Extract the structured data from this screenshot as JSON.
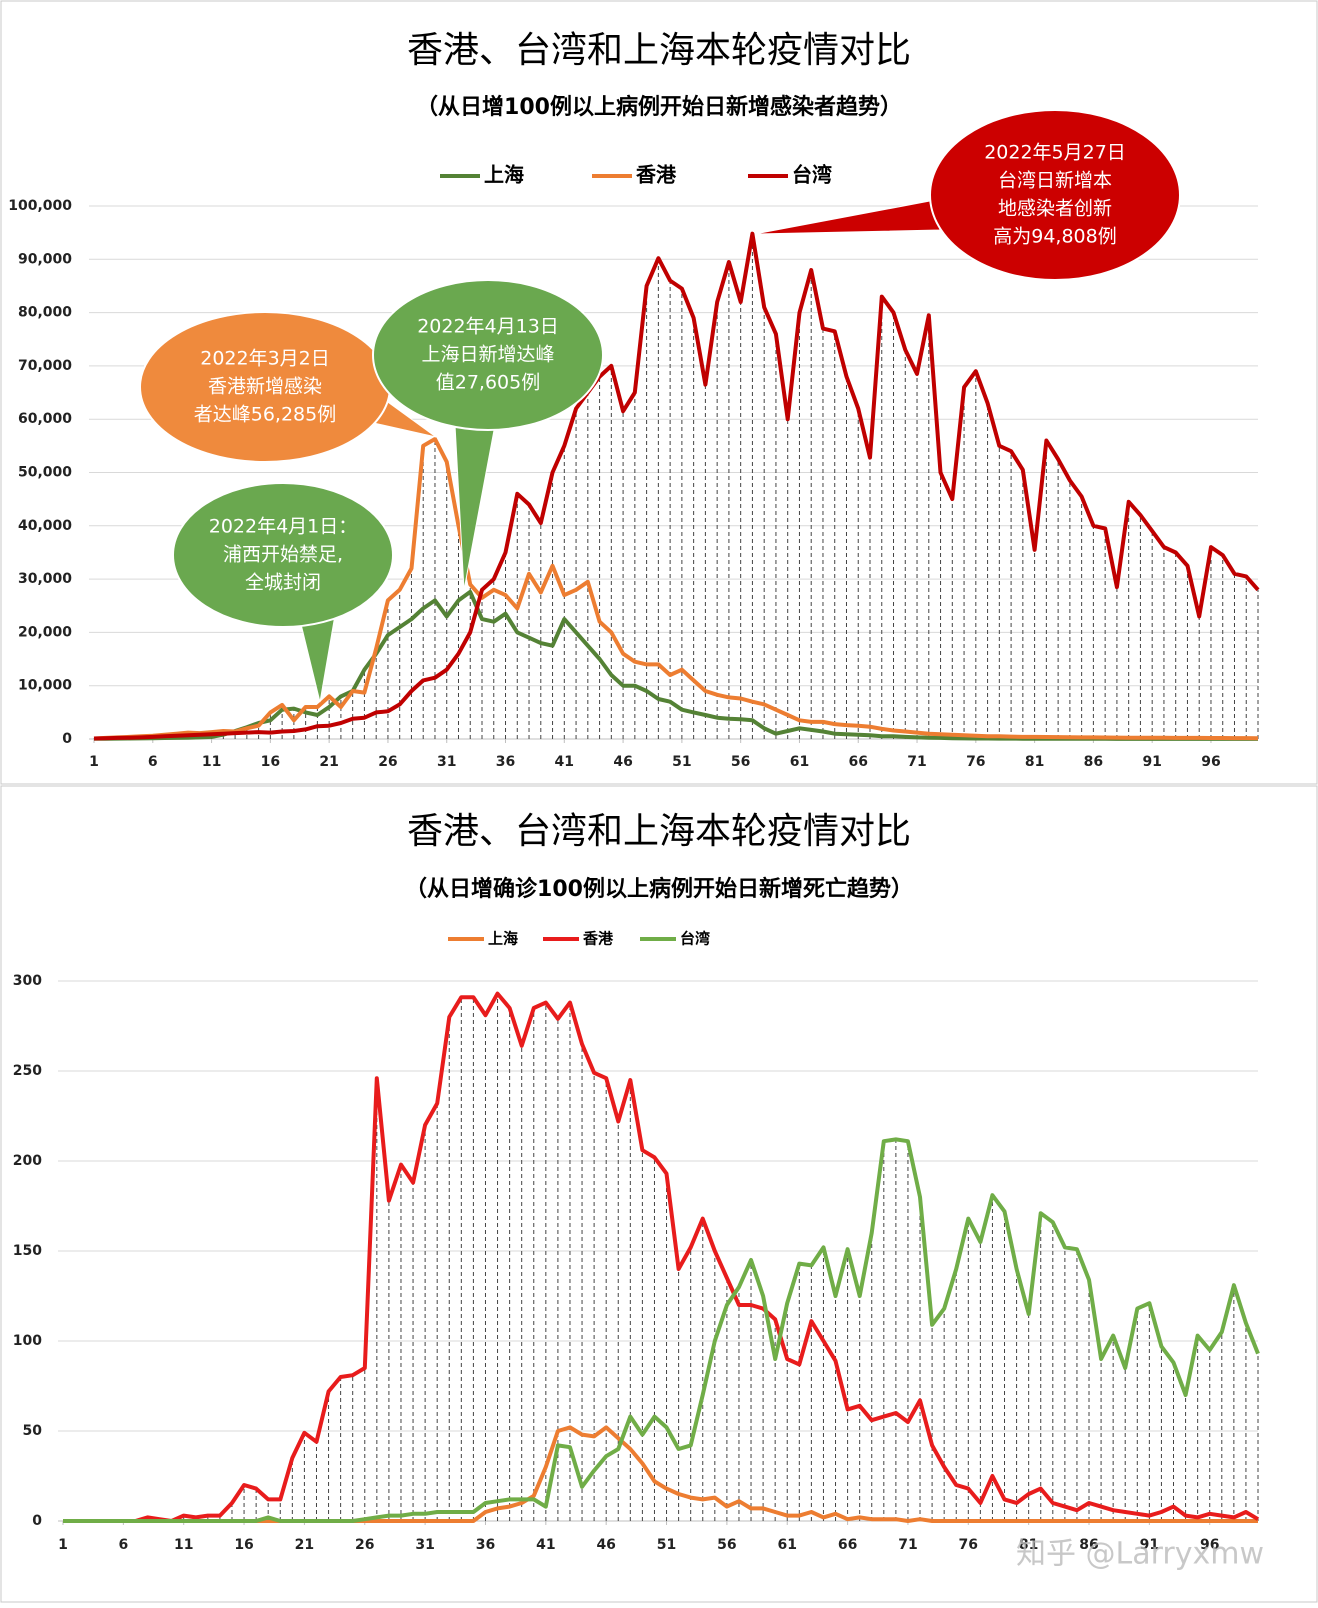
{
  "chart_data": [
    {
      "type": "line",
      "title": "香港、台湾和上海本轮疫情对比",
      "subtitle": "（从日增100例以上病例开始日新增感染者趋势）",
      "x": [
        1,
        2,
        3,
        4,
        5,
        6,
        7,
        8,
        9,
        10,
        11,
        12,
        13,
        14,
        15,
        16,
        17,
        18,
        19,
        20,
        21,
        22,
        23,
        24,
        25,
        26,
        27,
        28,
        29,
        30,
        31,
        32,
        33,
        34,
        35,
        36,
        37,
        38,
        39,
        40,
        41,
        42,
        43,
        44,
        45,
        46,
        47,
        48,
        49,
        50,
        51,
        52,
        53,
        54,
        55,
        56,
        57,
        58,
        59,
        60,
        61,
        62,
        63,
        64,
        65,
        66,
        67,
        68,
        69,
        70,
        71,
        72,
        73,
        74,
        75,
        76,
        77,
        78,
        79,
        80,
        81,
        82,
        83,
        84,
        85,
        86,
        87,
        88,
        89,
        90,
        91,
        92,
        93,
        94,
        95,
        96,
        97,
        98,
        99,
        100
      ],
      "xlim": [
        1,
        100
      ],
      "xticks": [
        1,
        6,
        11,
        16,
        21,
        26,
        31,
        36,
        41,
        46,
        51,
        56,
        61,
        66,
        71,
        76,
        81,
        86,
        91,
        96
      ],
      "ylim": [
        0,
        100000
      ],
      "yticks": [
        0,
        {
          "value": 10000,
          "label": "10,000"
        },
        {
          "value": 20000,
          "label": "20,000"
        },
        {
          "value": 30000,
          "label": "30,000"
        },
        {
          "value": 40000,
          "label": "40,000"
        },
        {
          "value": 50000,
          "label": "50,000"
        },
        {
          "value": 60000,
          "label": "60,000"
        },
        {
          "value": 70000,
          "label": "70,000"
        },
        {
          "value": 80000,
          "label": "80,000"
        },
        {
          "value": 90000,
          "label": "90,000"
        },
        {
          "value": 100000,
          "label": "100,000"
        }
      ],
      "grid": true,
      "legend": "top",
      "series": [
        {
          "name": "上海",
          "color": "#548235",
          "values": [
            50,
            60,
            80,
            100,
            120,
            150,
            180,
            200,
            250,
            300,
            400,
            800,
            1500,
            2200,
            3000,
            3500,
            5500,
            5700,
            5000,
            4500,
            6000,
            8000,
            9000,
            13000,
            16000,
            19500,
            21000,
            22500,
            24500,
            26000,
            23000,
            26000,
            27605,
            22500,
            22000,
            23500,
            20000,
            19000,
            18000,
            17500,
            22500,
            20000,
            17500,
            15000,
            12000,
            10000,
            10000,
            9000,
            7500,
            7000,
            5500,
            5000,
            4500,
            4000,
            3800,
            3700,
            3500,
            2000,
            1000,
            1500,
            2000,
            1700,
            1400,
            1000,
            900,
            800,
            700,
            500,
            500,
            400,
            300,
            250,
            200,
            150,
            120,
            100,
            90,
            80,
            70,
            60,
            50,
            50,
            40,
            40,
            30,
            30,
            30,
            20,
            20,
            20,
            20,
            20,
            15,
            15,
            10,
            10,
            10,
            10,
            10,
            10
          ]
        },
        {
          "name": "香港",
          "color": "#ed7d31",
          "values": [
            100,
            200,
            300,
            400,
            500,
            600,
            800,
            1000,
            1200,
            1100,
            1300,
            1500,
            1400,
            2000,
            2500,
            5000,
            6400,
            3500,
            6000,
            6000,
            8000,
            6000,
            9000,
            8700,
            17000,
            26000,
            28000,
            32000,
            55000,
            56285,
            52000,
            40000,
            29000,
            26500,
            28000,
            27000,
            24500,
            31000,
            27500,
            32500,
            27000,
            28000,
            29500,
            22000,
            20000,
            16000,
            14500,
            14000,
            14000,
            12000,
            13000,
            11000,
            9000,
            8300,
            7800,
            7600,
            7000,
            6500,
            5500,
            4500,
            3500,
            3200,
            3200,
            2800,
            2600,
            2500,
            2300,
            1900,
            1600,
            1400,
            1200,
            1000,
            900,
            800,
            700,
            600,
            500,
            500,
            450,
            400,
            400,
            380,
            350,
            330,
            300,
            300,
            280,
            260,
            250,
            240,
            230,
            220,
            210,
            200,
            200,
            190,
            180,
            170,
            160,
            150
          ]
        },
        {
          "name": "台湾",
          "color": "#c00000",
          "values": [
            100,
            150,
            200,
            250,
            300,
            400,
            500,
            600,
            700,
            800,
            900,
            1000,
            1100,
            1200,
            1300,
            1200,
            1400,
            1500,
            1800,
            2400,
            2500,
            3000,
            3800,
            4000,
            5000,
            5200,
            6500,
            9000,
            11000,
            11500,
            13000,
            16000,
            20000,
            28000,
            30000,
            35000,
            46000,
            44000,
            40500,
            50000,
            55000,
            62000,
            65000,
            68000,
            70000,
            61500,
            65000,
            85000,
            90200,
            86000,
            84500,
            79000,
            66500,
            82000,
            89500,
            82000,
            94808,
            81000,
            76000,
            60000,
            80000,
            88000,
            77000,
            76500,
            68000,
            62000,
            52800,
            83000,
            80000,
            73000,
            68500,
            79500,
            50000,
            45000,
            66000,
            69000,
            63000,
            55000,
            54000,
            50500,
            35500,
            56000,
            52500,
            48500,
            45500,
            40000,
            39500,
            28500,
            44500,
            42000,
            39000,
            36000,
            35000,
            32500,
            23000,
            36000,
            34500,
            31000,
            30500,
            28000
          ]
        }
      ],
      "annotations": [
        {
          "lines": [
            "2022年3月2日",
            "香港新增感染",
            "者达峰56,285例"
          ],
          "color": "#ef8a3d"
        },
        {
          "lines": [
            "2022年4月13日",
            "上海日新增达峰",
            "值27,605例"
          ],
          "color": "#6aa84f"
        },
        {
          "lines": [
            "2022年4月1日：",
            "浦西开始禁足,",
            "全城封闭"
          ],
          "color": "#6aa84f"
        },
        {
          "lines": [
            "2022年5月27日",
            "台湾日新增本",
            "地感染者创新",
            "高为94,808例"
          ],
          "color": "#cc0000"
        }
      ]
    },
    {
      "type": "line",
      "title": "香港、台湾和上海本轮疫情对比",
      "subtitle": "（从日增确诊100例以上病例开始日新增死亡趋势）",
      "x": [
        1,
        2,
        3,
        4,
        5,
        6,
        7,
        8,
        9,
        10,
        11,
        12,
        13,
        14,
        15,
        16,
        17,
        18,
        19,
        20,
        21,
        22,
        23,
        24,
        25,
        26,
        27,
        28,
        29,
        30,
        31,
        32,
        33,
        34,
        35,
        36,
        37,
        38,
        39,
        40,
        41,
        42,
        43,
        44,
        45,
        46,
        47,
        48,
        49,
        50,
        51,
        52,
        53,
        54,
        55,
        56,
        57,
        58,
        59,
        60,
        61,
        62,
        63,
        64,
        65,
        66,
        67,
        68,
        69,
        70,
        71,
        72,
        73,
        74,
        75,
        76,
        77,
        78,
        79,
        80,
        81,
        82,
        83,
        84,
        85,
        86,
        87,
        88,
        89,
        90,
        91,
        92,
        93,
        94,
        95,
        96,
        97,
        98,
        99,
        100
      ],
      "xlim": [
        1,
        100
      ],
      "xticks": [
        1,
        6,
        11,
        16,
        21,
        26,
        31,
        36,
        41,
        46,
        51,
        56,
        61,
        66,
        71,
        76,
        81,
        86,
        91,
        96
      ],
      "ylim": [
        0,
        300
      ],
      "yticks": [
        0,
        50,
        100,
        150,
        200,
        250,
        300
      ],
      "grid": true,
      "legend": "top",
      "series": [
        {
          "name": "上海",
          "color": "#ed7d31",
          "values": [
            0,
            0,
            0,
            0,
            0,
            0,
            0,
            0,
            0,
            0,
            0,
            0,
            0,
            0,
            0,
            0,
            0,
            0,
            0,
            0,
            0,
            0,
            0,
            0,
            0,
            0,
            0,
            0,
            0,
            0,
            0,
            0,
            0,
            0,
            0,
            5,
            7,
            8,
            10,
            14,
            30,
            50,
            52,
            48,
            47,
            52,
            46,
            40,
            32,
            22,
            18,
            15,
            13,
            12,
            13,
            8,
            11,
            7,
            7,
            5,
            3,
            3,
            5,
            2,
            4,
            1,
            2,
            1,
            1,
            1,
            0,
            1,
            0,
            0,
            0,
            0,
            0,
            0,
            0,
            0,
            0,
            0,
            0,
            0,
            0,
            0,
            0,
            0,
            0,
            0,
            0,
            0,
            0,
            0,
            0,
            0,
            0,
            0,
            0,
            0
          ]
        },
        {
          "name": "香港",
          "color": "#e81c1c",
          "values": [
            0,
            0,
            0,
            0,
            0,
            0,
            0,
            2,
            1,
            0,
            3,
            2,
            3,
            3,
            10,
            20,
            18,
            12,
            12,
            35,
            49,
            44,
            72,
            80,
            81,
            85,
            246,
            178,
            198,
            188,
            220,
            232,
            280,
            291,
            291,
            281,
            293,
            285,
            264,
            285,
            288,
            279,
            288,
            265,
            249,
            246,
            222,
            245,
            206,
            202,
            193,
            140,
            152,
            168,
            150,
            135,
            120,
            120,
            118,
            112,
            90,
            87,
            111,
            100,
            89,
            62,
            64,
            56,
            58,
            60,
            55,
            67,
            42,
            30,
            20,
            18,
            10,
            25,
            12,
            10,
            15,
            18,
            10,
            8,
            6,
            10,
            8,
            6,
            5,
            4,
            3,
            5,
            8,
            3,
            2,
            4,
            3,
            2,
            5,
            1
          ]
        },
        {
          "name": "台湾",
          "color": "#70ad47",
          "values": [
            0,
            0,
            0,
            0,
            0,
            0,
            0,
            0,
            0,
            0,
            0,
            0,
            0,
            0,
            0,
            0,
            0,
            2,
            0,
            0,
            0,
            0,
            0,
            0,
            0,
            1,
            2,
            3,
            3,
            4,
            4,
            5,
            5,
            5,
            5,
            10,
            11,
            12,
            12,
            12,
            8,
            42,
            41,
            19,
            28,
            36,
            40,
            58,
            48,
            58,
            52,
            40,
            42,
            70,
            100,
            120,
            130,
            145,
            125,
            90,
            121,
            143,
            142,
            152,
            125,
            151,
            125,
            160,
            211,
            212,
            211,
            180,
            109,
            118,
            140,
            168,
            155,
            181,
            172,
            140,
            115,
            171,
            166,
            152,
            151,
            134,
            90,
            103,
            85,
            118,
            121,
            97,
            88,
            70,
            103,
            95,
            105,
            131,
            110,
            93
          ]
        }
      ]
    }
  ],
  "watermark": "知乎 @Larryxmw"
}
